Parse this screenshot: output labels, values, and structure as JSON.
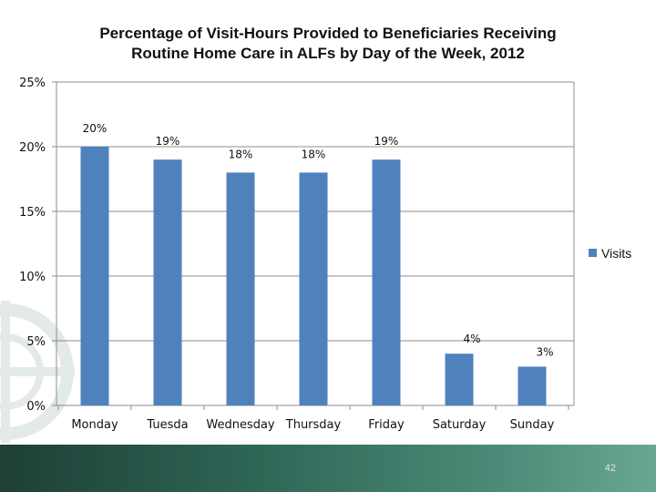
{
  "slide": {
    "page_number": "42"
  },
  "colors": {
    "bar": "#4f81bd",
    "grid": "#8c8c8c",
    "footer": "#2f6757"
  },
  "icons": {
    "watermark": "decorative-logo-icon"
  },
  "chart_data": {
    "type": "bar",
    "title": "Percentage of Visit-Hours Provided to Beneficiaries Receiving Routine Home Care in ALFs by Day of the Week, 2012",
    "title_lines": [
      "Percentage of Visit-Hours Provided to Beneficiaries Receiving",
      "Routine Home Care in ALFs by Day of the Week, 2012"
    ],
    "categories": [
      "Monday",
      "Tuesda",
      "Wednesday",
      "Thursday",
      "Friday",
      "Saturday",
      "Sunday"
    ],
    "series": [
      {
        "name": "Visits",
        "values": [
          20,
          19,
          18,
          18,
          19,
          4,
          3
        ]
      }
    ],
    "data_labels": [
      "20%",
      "19%",
      "18%",
      "18%",
      "19%",
      "4%",
      "3%"
    ],
    "yticks": [
      0,
      5,
      10,
      15,
      20,
      25
    ],
    "ytick_labels": [
      "0%",
      "5%",
      "10%",
      "15%",
      "20%",
      "25%"
    ],
    "ylim": [
      0,
      25
    ],
    "xlabel": "",
    "ylabel": "",
    "grid": true,
    "legend_position": "right"
  }
}
